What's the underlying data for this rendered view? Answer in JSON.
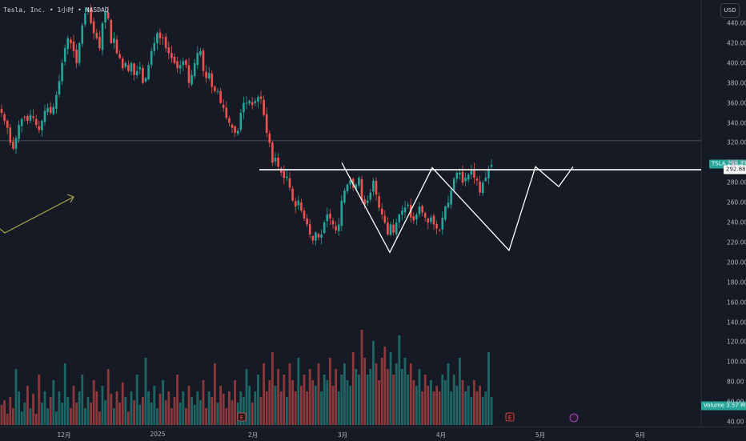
{
  "header": {
    "symbol_name": "Tesla, Inc.",
    "interval": "1小时",
    "exchange": "NASDAQ",
    "separator": "•"
  },
  "currency": "USD",
  "price_badges": {
    "symbol": "TSLA",
    "last_price": "298.27",
    "resistance_price": "292.88",
    "volume_label": "Volume",
    "volume_value": "3.57 M"
  },
  "colors": {
    "background": "#161a25",
    "up": "#26a69a",
    "down": "#ef5350",
    "drawing": "#ffffff",
    "trend_arrow": "#a7a54a"
  },
  "chart_data": {
    "type": "candlestick",
    "ylim": [
      40,
      450
    ],
    "y_ticks": [
      "440.00",
      "420.00",
      "400.00",
      "380.00",
      "360.00",
      "340.00",
      "320.00",
      "300.00",
      "280.00",
      "260.00",
      "240.00",
      "220.00",
      "200.00",
      "180.00",
      "160.00",
      "140.00",
      "120.00",
      "100.00",
      "80.00",
      "60.00",
      "40.00"
    ],
    "x_ticks": [
      "12月",
      "2025",
      "2月",
      "3月",
      "4月",
      "5月",
      "6月"
    ],
    "close_series": [
      350,
      342,
      335,
      320,
      314,
      325,
      338,
      344,
      345,
      342,
      348,
      345,
      338,
      333,
      342,
      352,
      355,
      350,
      356,
      368,
      382,
      400,
      415,
      425,
      420,
      412,
      400,
      420,
      438,
      450,
      455,
      440,
      430,
      425,
      415,
      440,
      452,
      445,
      420,
      425,
      410,
      405,
      395,
      400,
      392,
      400,
      388,
      392,
      396,
      380,
      385,
      398,
      412,
      420,
      430,
      425,
      425,
      415,
      410,
      405,
      400,
      395,
      398,
      402,
      398,
      380,
      388,
      400,
      410,
      412,
      392,
      385,
      390,
      376,
      372,
      372,
      360,
      355,
      345,
      340,
      335,
      330,
      332,
      350,
      360,
      360,
      362,
      358,
      362,
      366,
      364,
      348,
      330,
      320,
      300,
      305,
      296,
      290,
      285,
      286,
      275,
      262,
      256,
      262,
      252,
      244,
      238,
      228,
      222,
      230,
      225,
      228,
      240,
      248,
      244,
      238,
      232,
      238,
      262,
      272,
      278,
      282,
      275,
      278,
      285,
      262,
      258,
      262,
      270,
      282,
      268,
      255,
      248,
      240,
      228,
      238,
      230,
      240,
      248,
      252,
      255,
      258,
      245,
      242,
      248,
      256,
      250,
      245,
      240,
      245,
      238,
      234,
      232,
      245,
      256,
      260,
      272,
      284,
      290,
      290,
      280,
      285,
      288,
      292,
      285,
      282,
      270,
      280,
      285,
      294,
      298
    ],
    "volume_relative": [
      0.18,
      0.22,
      0.1,
      0.25,
      0.15,
      0.5,
      0.3,
      0.12,
      0.2,
      0.35,
      0.15,
      0.28,
      0.1,
      0.45,
      0.2,
      0.3,
      0.15,
      0.25,
      0.4,
      0.12,
      0.3,
      0.2,
      0.55,
      0.25,
      0.15,
      0.35,
      0.2,
      0.3,
      0.45,
      0.15,
      0.25,
      0.2,
      0.4,
      0.3,
      0.12,
      0.35,
      0.22,
      0.5,
      0.28,
      0.15,
      0.3,
      0.2,
      0.38,
      0.25,
      0.12,
      0.3,
      0.22,
      0.45,
      0.18,
      0.25,
      0.6,
      0.3,
      0.2,
      0.35,
      0.15,
      0.28,
      0.4,
      0.22,
      0.3,
      0.15,
      0.25,
      0.45,
      0.2,
      0.3,
      0.15,
      0.35,
      0.25,
      0.18,
      0.3,
      0.22,
      0.4,
      0.15,
      0.3,
      0.25,
      0.55,
      0.2,
      0.35,
      0.28,
      0.15,
      0.3,
      0.22,
      0.4,
      0.2,
      0.3,
      0.25,
      0.5,
      0.35,
      0.2,
      0.3,
      0.45,
      0.25,
      0.55,
      0.3,
      0.4,
      0.65,
      0.35,
      0.5,
      0.3,
      0.45,
      0.25,
      0.55,
      0.4,
      0.3,
      0.6,
      0.35,
      0.45,
      0.3,
      0.5,
      0.4,
      0.35,
      0.55,
      0.3,
      0.45,
      0.4,
      0.6,
      0.35,
      0.5,
      0.3,
      0.45,
      0.55,
      0.4,
      0.35,
      0.65,
      0.5,
      0.45,
      0.85,
      0.6,
      0.45,
      0.5,
      0.75,
      0.55,
      0.4,
      0.6,
      0.7,
      0.5,
      0.65,
      0.45,
      0.55,
      0.8,
      0.5,
      0.6,
      0.45,
      0.55,
      0.4,
      0.35,
      0.5,
      0.3,
      0.45,
      0.35,
      0.4,
      0.3,
      0.35,
      0.3,
      0.45,
      0.4,
      0.55,
      0.3,
      0.45,
      0.35,
      0.6,
      0.4,
      0.3,
      0.35,
      0.25,
      0.4,
      0.3,
      0.35,
      0.25,
      0.3,
      0.65,
      0.25
    ],
    "horizontal_levels": [
      293,
      322
    ],
    "annotations": {
      "resistance_line_price": 293,
      "pattern_zigzag_prices": [
        300,
        210,
        295,
        212,
        296,
        276,
        296
      ]
    }
  }
}
